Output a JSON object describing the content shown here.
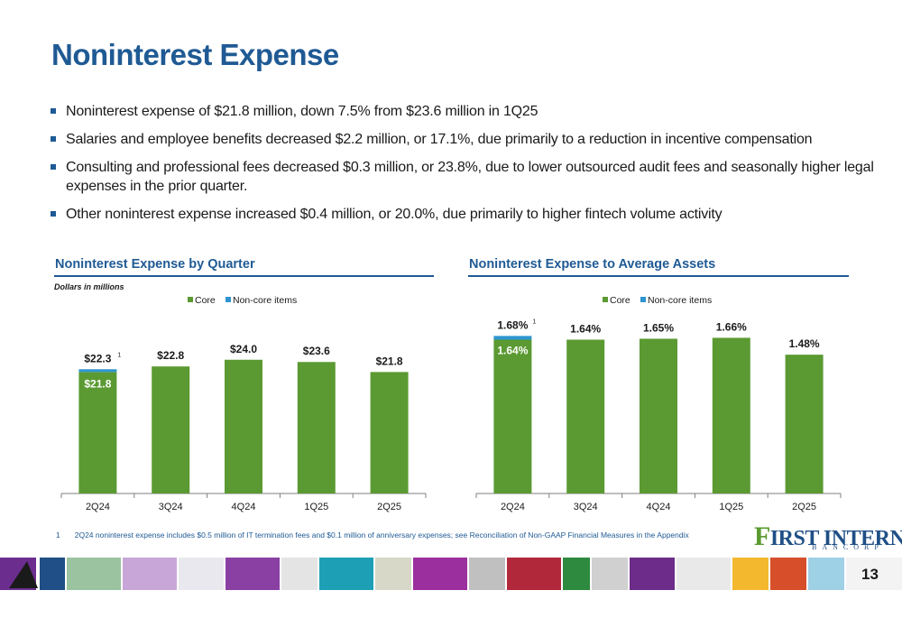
{
  "page": {
    "title": "Noninterest Expense",
    "page_number": "13"
  },
  "bullets": [
    "Noninterest expense of $21.8 million, down 7.5% from $23.6 million in 1Q25",
    "Salaries and employee benefits decreased $2.2 million, or 17.1%, due primarily to a reduction in incentive compensation",
    "Consulting and professional fees decreased $0.3 million, or 23.8%, due to lower outsourced audit fees and seasonally higher legal expenses in the prior quarter.",
    "Other noninterest expense increased $0.4 million, or 20.0%, due primarily to higher fintech volume activity"
  ],
  "left_section": {
    "title": "Noninterest Expense by Quarter",
    "note": "Dollars in millions"
  },
  "right_section": {
    "title": "Noninterest Expense to Average Assets"
  },
  "footnote": {
    "number": "1",
    "text": "2Q24 noninterest expense includes $0.5 million of IT termination fees and $0.1 million of anniversary expenses; see Reconciliation of Non-GAAP Financial Measures in the Appendix"
  },
  "logo": {
    "first_letter": "F",
    "rest": "IRST INTERNET",
    "sub": "BANCORP"
  },
  "colors": {
    "core": "#5b9a32",
    "noncore": "#2f95d0",
    "title_blue": "#1f5a94"
  },
  "chart_data": [
    {
      "type": "bar",
      "stacked": true,
      "title": "Noninterest Expense by Quarter",
      "unit_note": "Dollars in millions",
      "categories": [
        "2Q24",
        "3Q24",
        "4Q24",
        "1Q25",
        "2Q25"
      ],
      "series": [
        {
          "name": "Core",
          "values": [
            21.8,
            22.8,
            24.0,
            23.6,
            21.8
          ]
        },
        {
          "name": "Non-core items",
          "values": [
            0.5,
            0,
            0,
            0,
            0
          ]
        }
      ],
      "total_labels": [
        "$22.3",
        "$22.8",
        "$24.0",
        "$23.6",
        "$21.8"
      ],
      "inner_labels": [
        "$21.8",
        "",
        "",
        "",
        ""
      ],
      "footnote_marks": [
        "1",
        "",
        "",
        "",
        ""
      ],
      "ylim": [
        0,
        34
      ],
      "legend": "top",
      "grid": false
    },
    {
      "type": "bar",
      "stacked": true,
      "title": "Noninterest Expense to Average Assets",
      "categories": [
        "2Q24",
        "3Q24",
        "4Q24",
        "1Q25",
        "2Q25"
      ],
      "series": [
        {
          "name": "Core",
          "values": [
            1.64,
            1.64,
            1.65,
            1.66,
            1.48
          ]
        },
        {
          "name": "Non-core items",
          "values": [
            0.04,
            0,
            0,
            0,
            0
          ]
        }
      ],
      "total_labels": [
        "1.68%",
        "1.64%",
        "1.65%",
        "1.66%",
        "1.48%"
      ],
      "inner_labels": [
        "1.64%",
        "",
        "",
        "",
        ""
      ],
      "footnote_marks": [
        "1",
        "",
        "",
        "",
        ""
      ],
      "ylim": [
        0,
        2.02
      ],
      "legend": "top",
      "grid": false
    }
  ]
}
